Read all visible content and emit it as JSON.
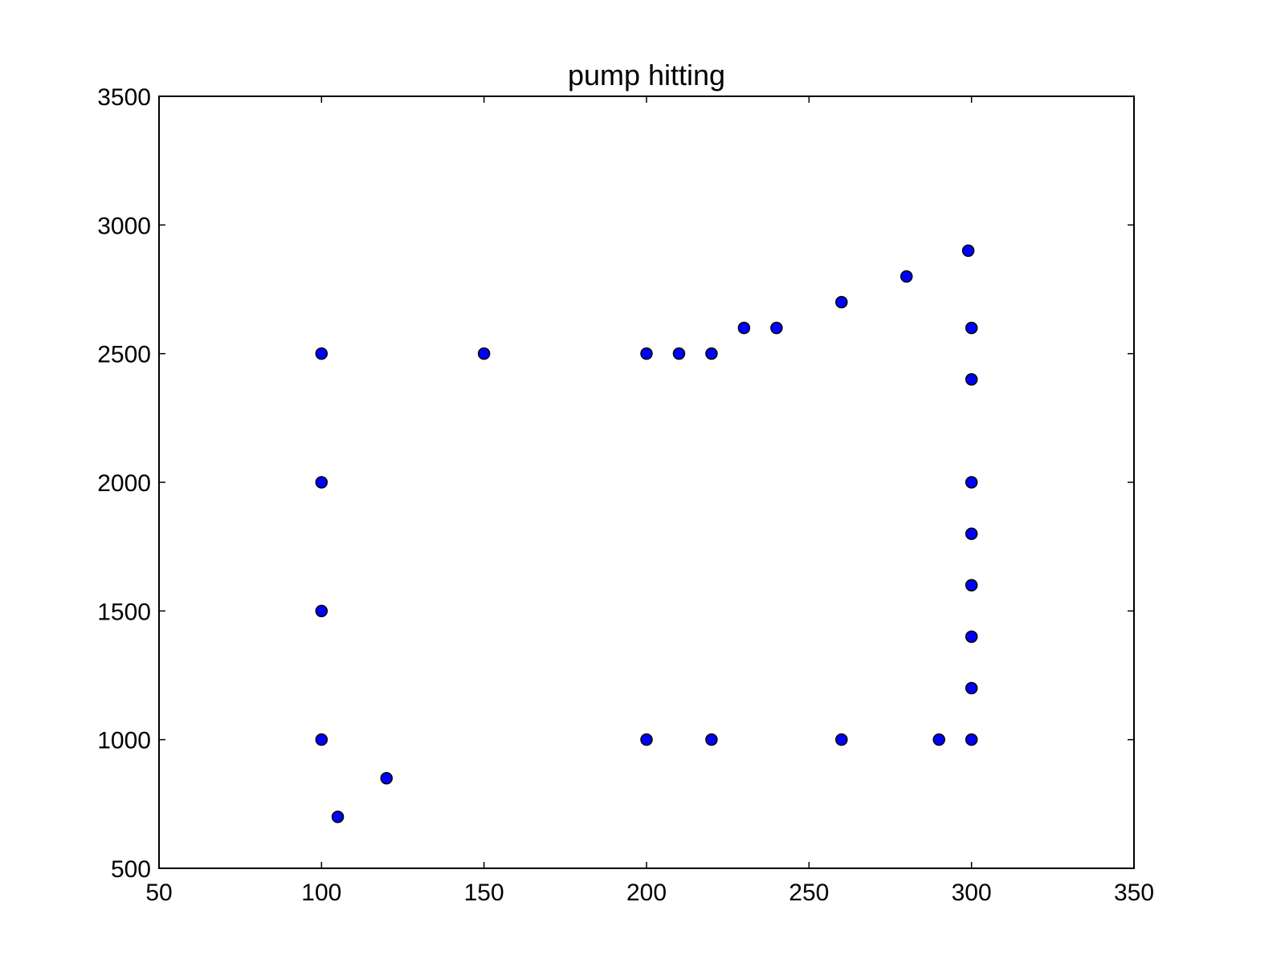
{
  "chart_data": {
    "type": "scatter",
    "title": "pump hitting",
    "xlabel": "",
    "ylabel": "",
    "xlim": [
      50,
      350
    ],
    "ylim": [
      500,
      3500
    ],
    "xticks": [
      50,
      100,
      150,
      200,
      250,
      300,
      350
    ],
    "yticks": [
      500,
      1000,
      1500,
      2000,
      2500,
      3000,
      3500
    ],
    "grid": false,
    "marker_color": "#0000ff",
    "marker_edge_color": "#000000",
    "points": [
      {
        "x": 100,
        "y": 2500
      },
      {
        "x": 100,
        "y": 2000
      },
      {
        "x": 100,
        "y": 1500
      },
      {
        "x": 100,
        "y": 1000
      },
      {
        "x": 105,
        "y": 700
      },
      {
        "x": 120,
        "y": 850
      },
      {
        "x": 150,
        "y": 2500
      },
      {
        "x": 200,
        "y": 2500
      },
      {
        "x": 210,
        "y": 2500
      },
      {
        "x": 220,
        "y": 2500
      },
      {
        "x": 230,
        "y": 2600
      },
      {
        "x": 240,
        "y": 2600
      },
      {
        "x": 260,
        "y": 2700
      },
      {
        "x": 280,
        "y": 2800
      },
      {
        "x": 299,
        "y": 2900
      },
      {
        "x": 300,
        "y": 2600
      },
      {
        "x": 300,
        "y": 2400
      },
      {
        "x": 300,
        "y": 2000
      },
      {
        "x": 300,
        "y": 1800
      },
      {
        "x": 300,
        "y": 1600
      },
      {
        "x": 300,
        "y": 1400
      },
      {
        "x": 300,
        "y": 1200
      },
      {
        "x": 300,
        "y": 1000
      },
      {
        "x": 290,
        "y": 1000
      },
      {
        "x": 260,
        "y": 1000
      },
      {
        "x": 220,
        "y": 1000
      },
      {
        "x": 200,
        "y": 1000
      }
    ]
  }
}
